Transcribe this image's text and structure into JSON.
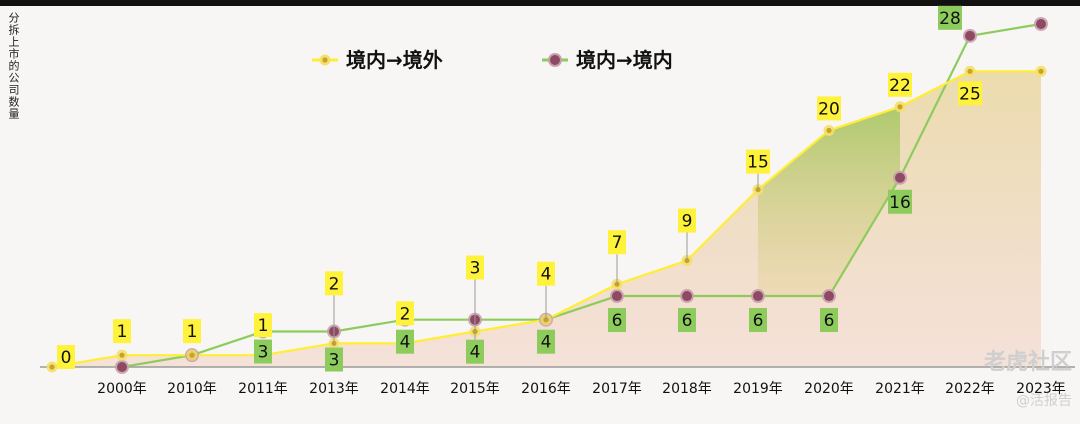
{
  "chart_data": {
    "type": "line",
    "title": "",
    "ylabel": "分拆上市的公司数量",
    "xlabel": "",
    "categories": [
      "",
      "2000年",
      "2010年",
      "2011年",
      "2013年",
      "2014年",
      "2015年",
      "2016年",
      "2017年",
      "2018年",
      "2019年",
      "2020年",
      "2021年",
      "2022年",
      "2023年"
    ],
    "ylim": [
      0,
      29
    ],
    "series": [
      {
        "name": "境内→境外",
        "color": "#ffee33",
        "marker": "#c9a227",
        "values": [
          0,
          1,
          1,
          1,
          2,
          2,
          3,
          4,
          7,
          9,
          15,
          20,
          22,
          25,
          25
        ],
        "labels": [
          "0",
          "1",
          "1",
          "1",
          "2",
          "2",
          "3",
          "4",
          "7",
          "9",
          "15",
          "20",
          "22",
          "25",
          null
        ]
      },
      {
        "name": "境内→境内",
        "color": "#8dcc5c",
        "marker": "#8e4a63",
        "values": [
          null,
          0,
          1,
          3,
          3,
          4,
          4,
          4,
          6,
          6,
          6,
          6,
          16,
          28,
          29
        ],
        "labels": [
          null,
          null,
          null,
          "3",
          "3",
          "4",
          "4",
          "4",
          "6",
          "6",
          "6",
          "6",
          "16",
          "28",
          null
        ]
      }
    ],
    "legend": "top-center",
    "grid": false
  },
  "watermark": {
    "brand": "老虎社区",
    "handle": "@活报告"
  }
}
